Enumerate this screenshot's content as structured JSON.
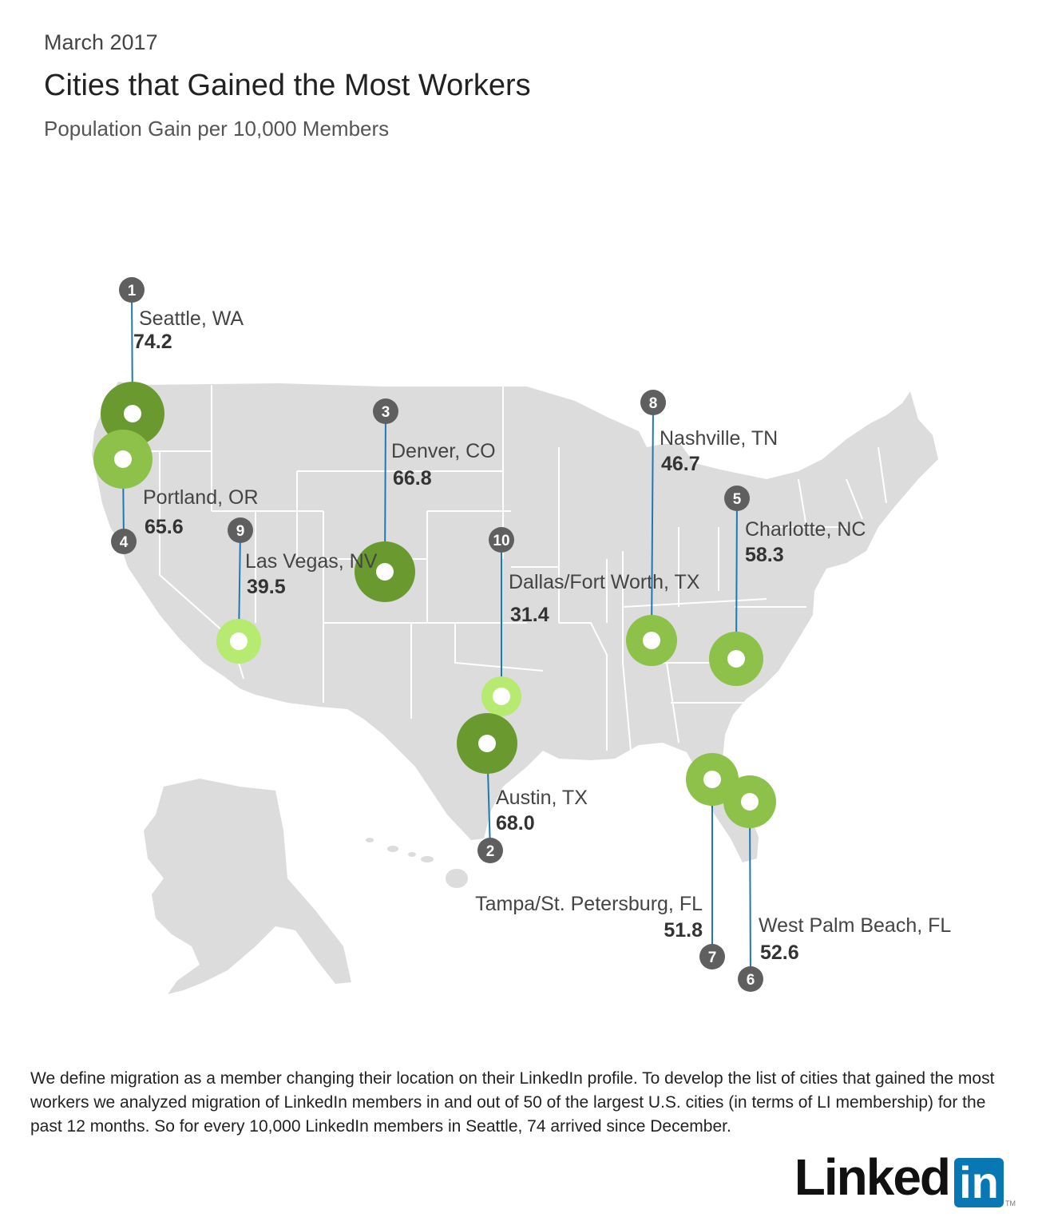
{
  "header": {
    "date": "March 2017",
    "title": "Cities that Gained the Most Workers",
    "subtitle": "Population Gain per 10,000 Members"
  },
  "legend": {
    "colors": {
      "dark": "#6a9a2f",
      "medium": "#8dc14a",
      "light": "#b6ea70"
    },
    "badge_color": "#5f5f5f",
    "leader_color": "#1f78b4",
    "land_color": "#dcdcdc"
  },
  "cities": [
    {
      "rank": "1",
      "name": "Seattle, WA",
      "value": "74.2"
    },
    {
      "rank": "2",
      "name": "Austin, TX",
      "value": "68.0"
    },
    {
      "rank": "3",
      "name": "Denver, CO",
      "value": "66.8"
    },
    {
      "rank": "4",
      "name": "Portland, OR",
      "value": "65.6"
    },
    {
      "rank": "5",
      "name": "Charlotte, NC",
      "value": "58.3"
    },
    {
      "rank": "6",
      "name": "West Palm Beach, FL",
      "value": "52.6"
    },
    {
      "rank": "7",
      "name": "Tampa/St. Petersburg, FL",
      "value": "51.8"
    },
    {
      "rank": "8",
      "name": "Nashville, TN",
      "value": "46.7"
    },
    {
      "rank": "9",
      "name": "Las Vegas, NV",
      "value": "39.5"
    },
    {
      "rank": "10",
      "name": "Dallas/Fort Worth, TX",
      "value": "31.4"
    }
  ],
  "footnote": "We define migration as a member changing their location on their LinkedIn profile. To develop the list of cities that gained the most workers we analyzed migration of LinkedIn members in and out of 50 of the largest U.S. cities (in terms of LI membership) for the past 12 months. So for every 10,000 LinkedIn members in Seattle, 74 arrived since December.",
  "logo": {
    "text": "Linked",
    "box": "in",
    "tm": "TM"
  }
}
